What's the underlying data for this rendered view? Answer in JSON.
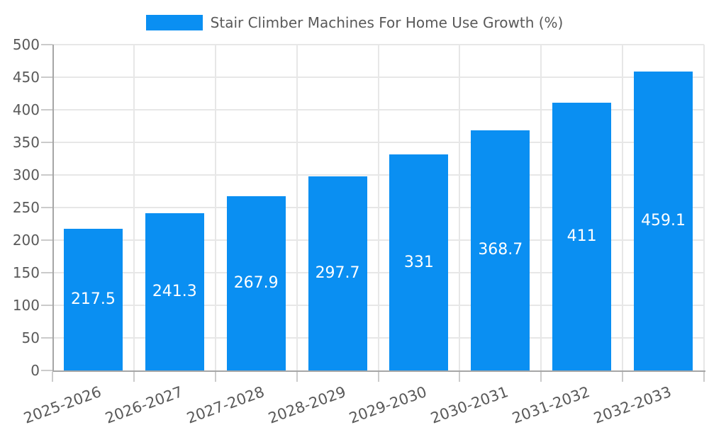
{
  "chart_data": {
    "type": "bar",
    "legend": "Stair Climber Machines For Home Use Growth (%)",
    "legend_position": "top-center",
    "categories": [
      "2025-2026",
      "2026-2027",
      "2027-2028",
      "2028-2029",
      "2029-2030",
      "2030-2031",
      "2031-2032",
      "2032-2033"
    ],
    "values": [
      217.5,
      241.3,
      267.9,
      297.7,
      331,
      368.7,
      411,
      459.1
    ],
    "value_labels": [
      "217.5",
      "241.3",
      "267.9",
      "297.7",
      "331",
      "368.7",
      "411",
      "459.1"
    ],
    "xlabel": "",
    "ylabel": "",
    "ylim": [
      0,
      500
    ],
    "yticks": [
      0,
      50,
      100,
      150,
      200,
      250,
      300,
      350,
      400,
      450,
      500
    ],
    "grid": true,
    "x_label_rotation_deg": -20,
    "colors": {
      "bar": "#0a8ff2",
      "grid": "#e7e7e7",
      "tick": "#cbcbcb",
      "axis": "#a6a6a6",
      "text": "#595959",
      "value_text": "#ffffff",
      "background": "#ffffff"
    }
  }
}
